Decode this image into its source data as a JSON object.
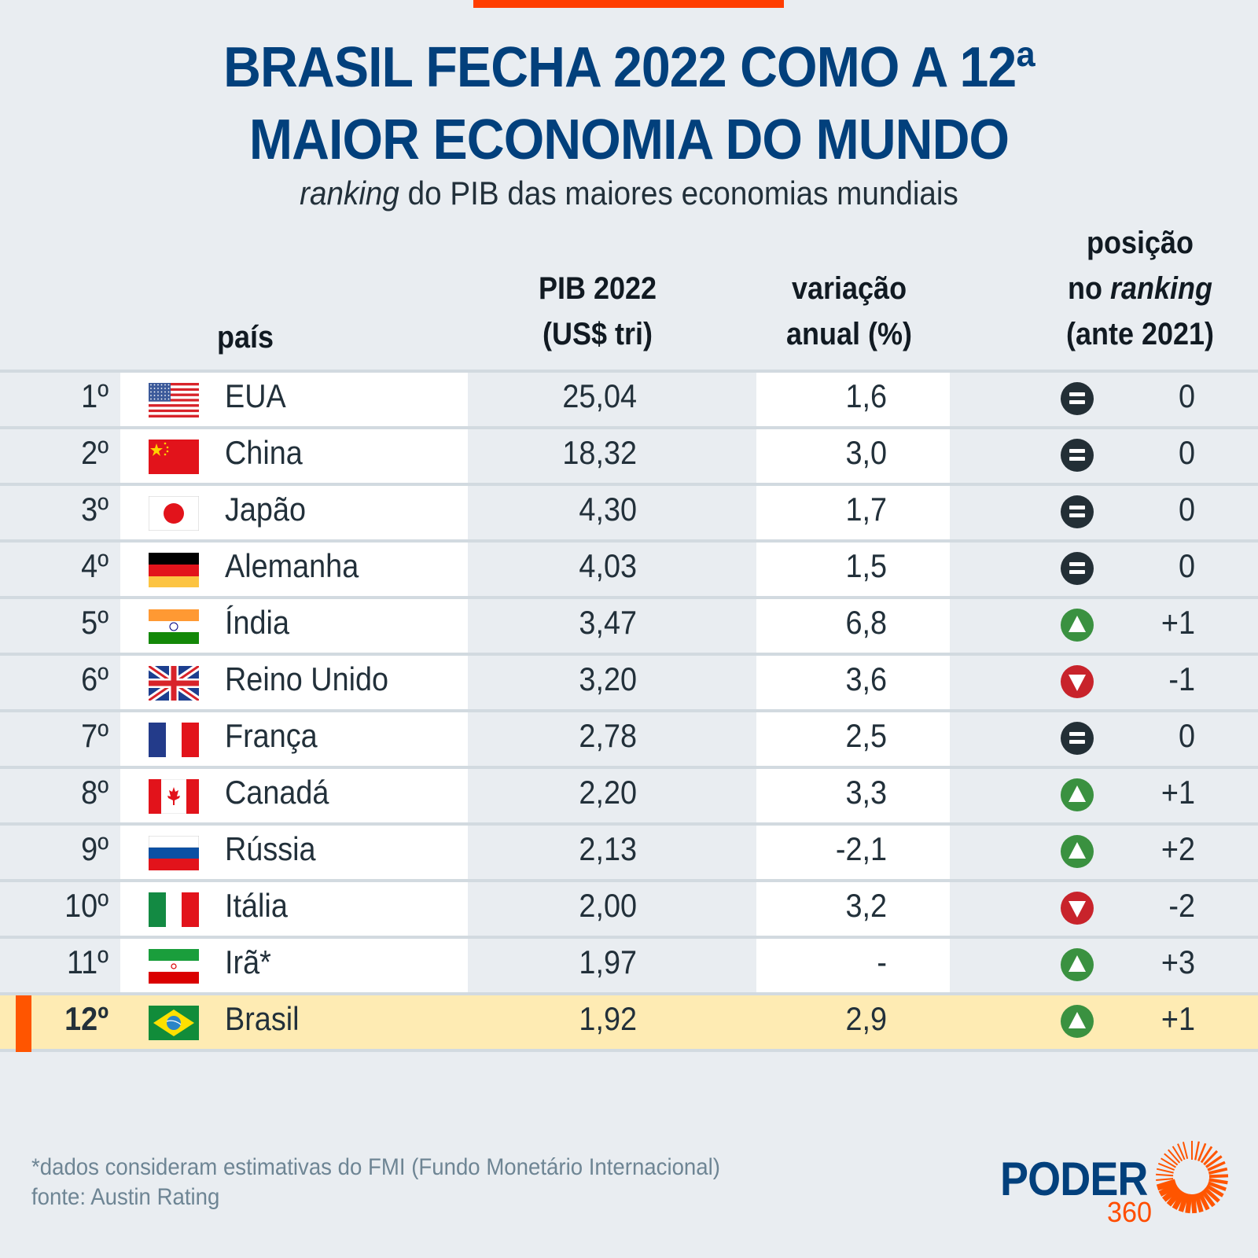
{
  "header": {
    "title_line1": "BRASIL FECHA 2022 COMO A 12ª",
    "title_line2": "MAIOR ECONOMIA DO MUNDO",
    "subtitle_italic": "ranking",
    "subtitle_rest": " do PIB das maiores economias mundiais"
  },
  "columns": {
    "country": "país",
    "pib_line1": "PIB 2022",
    "pib_line2": "(US$ tri)",
    "var_line1": "variação",
    "var_line2": "anual (%)",
    "pos_line1": "posição",
    "pos_line2_a": "no ",
    "pos_line2_b": "ranking",
    "pos_line3": "(ante 2021)"
  },
  "colors": {
    "title": "#02407c",
    "accent": "#ff4d00",
    "highlight_row": "#feebb3",
    "up": "#3a9140",
    "down": "#c8232b",
    "equal": "#232f36"
  },
  "chart_data": {
    "type": "table",
    "title": "BRASIL FECHA 2022 COMO A 12ª MAIOR ECONOMIA DO MUNDO",
    "subtitle": "ranking do PIB das maiores economias mundiais",
    "columns": [
      "rank",
      "país",
      "PIB 2022 (US$ tri)",
      "variação anual (%)",
      "posição no ranking (ante 2021)"
    ],
    "rows": [
      {
        "rank": "1º",
        "country": "EUA",
        "flag": "us-flag",
        "pib": "25,04",
        "var": "1,6",
        "trend": "equal",
        "pos": "0"
      },
      {
        "rank": "2º",
        "country": "China",
        "flag": "china-flag",
        "pib": "18,32",
        "var": "3,0",
        "trend": "equal",
        "pos": "0"
      },
      {
        "rank": "3º",
        "country": "Japão",
        "flag": "japan-flag",
        "pib": "4,30",
        "var": "1,7",
        "trend": "equal",
        "pos": "0"
      },
      {
        "rank": "4º",
        "country": "Alemanha",
        "flag": "germany-flag",
        "pib": "4,03",
        "var": "1,5",
        "trend": "equal",
        "pos": "0"
      },
      {
        "rank": "5º",
        "country": "Índia",
        "flag": "india-flag",
        "pib": "3,47",
        "var": "6,8",
        "trend": "up",
        "pos": "+1"
      },
      {
        "rank": "6º",
        "country": "Reino Unido",
        "flag": "uk-flag",
        "pib": "3,20",
        "var": "3,6",
        "trend": "down",
        "pos": "-1"
      },
      {
        "rank": "7º",
        "country": "França",
        "flag": "france-flag",
        "pib": "2,78",
        "var": "2,5",
        "trend": "equal",
        "pos": "0"
      },
      {
        "rank": "8º",
        "country": "Canadá",
        "flag": "canada-flag",
        "pib": "2,20",
        "var": "3,3",
        "trend": "up",
        "pos": "+1"
      },
      {
        "rank": "9º",
        "country": "Rússia",
        "flag": "russia-flag",
        "pib": "2,13",
        "var": "-2,1",
        "trend": "up",
        "pos": "+2"
      },
      {
        "rank": "10º",
        "country": "Itália",
        "flag": "italy-flag",
        "pib": "2,00",
        "var": "3,2",
        "trend": "down",
        "pos": "-2"
      },
      {
        "rank": "11º",
        "country": "Irã*",
        "flag": "iran-flag",
        "pib": "1,97",
        "var": "-",
        "trend": "up",
        "pos": "+3"
      },
      {
        "rank": "12º",
        "country": "Brasil",
        "flag": "brazil-flag",
        "pib": "1,92",
        "var": "2,9",
        "trend": "up",
        "pos": "+1",
        "highlight": true
      }
    ]
  },
  "footer": {
    "note": "*dados consideram estimativas do FMI (Fundo Monetário Internacional)",
    "source": "fonte: Austin Rating",
    "logo_word": "PODER",
    "logo_number": "360"
  }
}
